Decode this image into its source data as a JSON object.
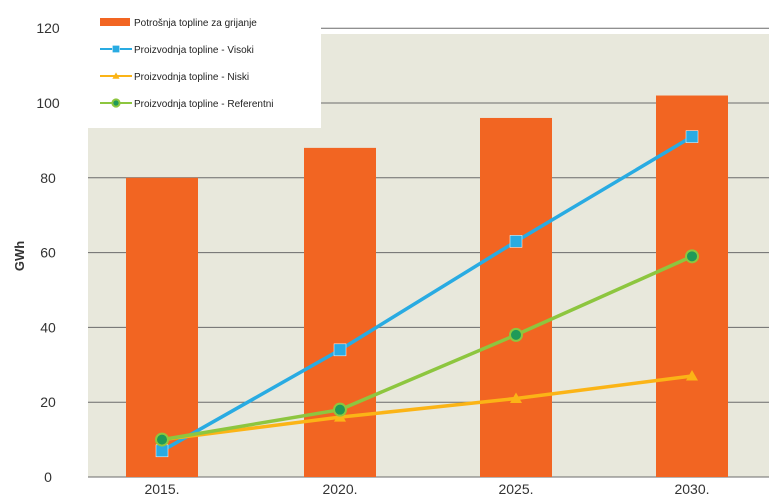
{
  "chart_data": {
    "type": "bar",
    "categories": [
      "2015.",
      "2020.",
      "2025.",
      "2030."
    ],
    "ylabel": "GWh",
    "ylim": [
      0,
      125
    ],
    "yticks": [
      0,
      20,
      40,
      60,
      80,
      100,
      120
    ],
    "grid": true,
    "legend_position": "top-left",
    "series": [
      {
        "name": "Potrošnja topline za grijanje",
        "kind": "bar",
        "color": "#f26522",
        "marker": "none",
        "values": [
          80,
          88,
          96,
          102
        ]
      },
      {
        "name": "Proizvodnja topline - Visoki",
        "kind": "line",
        "color": "#29abe2",
        "marker": "square",
        "values": [
          7,
          34,
          63,
          91
        ]
      },
      {
        "name": "Proizvodnja topline - Niski",
        "kind": "line",
        "color": "#fbb416",
        "marker": "triangle",
        "values": [
          10,
          16,
          21,
          27
        ]
      },
      {
        "name": "Proizvodnja topline - Referentni",
        "kind": "line",
        "color": "#8dc63f",
        "marker": "circle",
        "values": [
          10,
          18,
          38,
          59
        ]
      }
    ]
  },
  "colors": {
    "plot_background": "#e8e8dc",
    "gridline": "#6b6b6b",
    "marker_fill": {
      "Proizvodnja topline - Referentni": "#1f9a58"
    }
  }
}
